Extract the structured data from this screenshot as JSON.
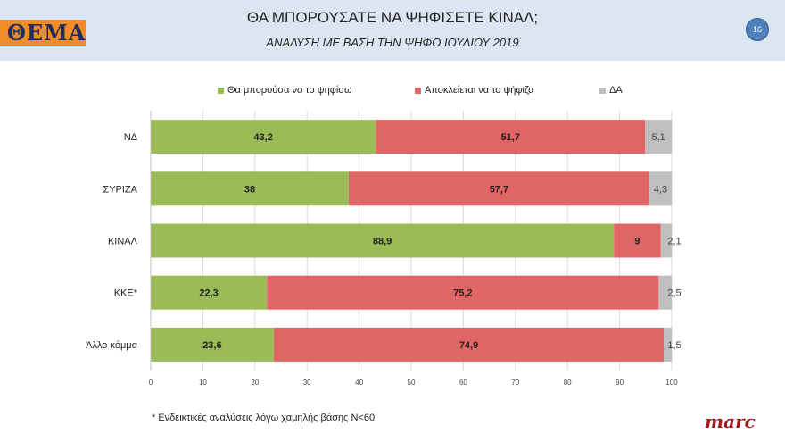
{
  "header": {
    "logo": "ΘΕΜΑ",
    "title": "ΘΑ ΜΠΟΡΟΥΣΑΤΕ ΝΑ ΨΗΦΙΣΕΤΕ ΚΙΝΑΛ;",
    "subtitle": "ΑΝΑΛΥΣΗ ΜΕ ΒΑΣΗ ΤΗΝ ΨΗΦΟ ΙΟΥΛΙΟΥ 2019",
    "page_number": "16"
  },
  "footnote": "* Ενδεικτικές αναλύσεις λόγω χαμηλής βάσης Ν<60",
  "brand": "marc",
  "chart_data": {
    "type": "bar",
    "orientation": "horizontal",
    "stacked": true,
    "categories": [
      "ΝΔ",
      "ΣΥΡΙΖΑ",
      "ΚΙΝΑΛ",
      "ΚΚΕ*",
      "Άλλο κόμμα"
    ],
    "series": [
      {
        "name": "Θα μπορούσα να το ψηφίσω",
        "color": "#9bbb59",
        "values": [
          43.2,
          38,
          88.9,
          22.3,
          23.6
        ],
        "labels": [
          "43,2",
          "38",
          "88,9",
          "22,3",
          "23,6"
        ]
      },
      {
        "name": "Αποκλείεται να το ψήφιζα",
        "color": "#e06666",
        "values": [
          51.7,
          57.7,
          9,
          75.2,
          74.9
        ],
        "labels": [
          "51,7",
          "57,7",
          "9",
          "75,2",
          "74,9"
        ]
      },
      {
        "name": "ΔΑ",
        "color": "#bfbfbf",
        "values": [
          5.1,
          4.3,
          2.1,
          2.5,
          1.5
        ],
        "labels": [
          "5,1",
          "4,3",
          "2,1",
          "2,5",
          "1,5"
        ]
      }
    ],
    "xlim": [
      0,
      100
    ],
    "xticks": [
      "0",
      "10",
      "20",
      "30",
      "40",
      "50",
      "60",
      "70",
      "80",
      "90",
      "100"
    ],
    "grid": true,
    "legend": "top"
  }
}
